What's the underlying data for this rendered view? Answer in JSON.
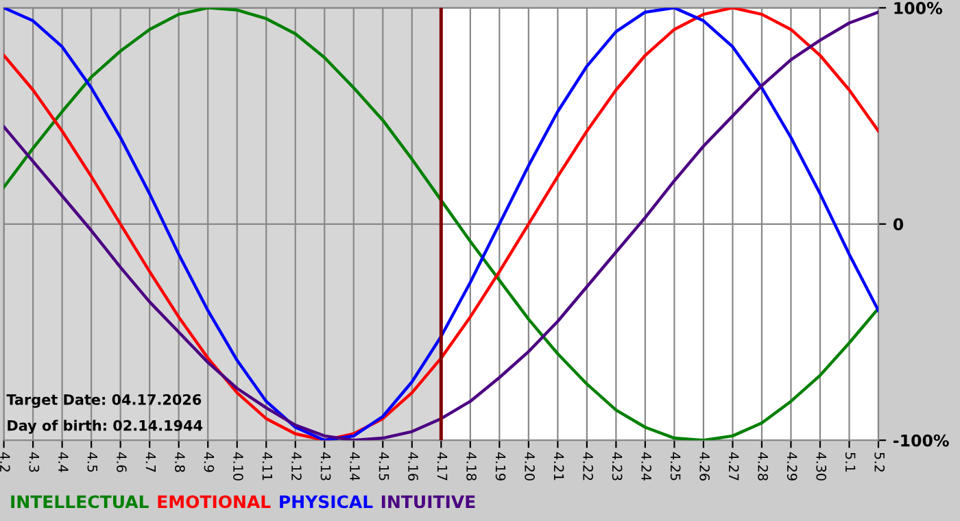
{
  "chart_data": {
    "type": "line",
    "categories": [
      "4.2",
      "4.3",
      "4.4",
      "4.5",
      "4.6",
      "4.7",
      "4.8",
      "4.9",
      "4.10",
      "4.11",
      "4.12",
      "4.13",
      "4.14",
      "4.15",
      "4.16",
      "4.17",
      "4.18",
      "4.19",
      "4.20",
      "4.21",
      "4.22",
      "4.23",
      "4.24",
      "4.25",
      "4.26",
      "4.27",
      "4.28",
      "4.29",
      "4.30",
      "5.1",
      "5.2"
    ],
    "series": [
      {
        "name": "INTELLECTUAL",
        "color": "#008000",
        "values": [
          17,
          35,
          52,
          68,
          80,
          90,
          97,
          100,
          99,
          95,
          88,
          77,
          63,
          48,
          30,
          11,
          -8,
          -26,
          -44,
          -60,
          -74,
          -86,
          -94,
          -99,
          -100,
          -98,
          -92,
          -82,
          -70,
          -55,
          -39
        ]
      },
      {
        "name": "EMOTIONAL",
        "color": "#ff0000",
        "values": [
          78,
          62,
          43,
          22,
          0,
          -22,
          -43,
          -62,
          -78,
          -90,
          -97,
          -100,
          -97,
          -90,
          -78,
          -62,
          -43,
          -22,
          0,
          22,
          43,
          62,
          78,
          90,
          97,
          100,
          97,
          90,
          78,
          62,
          43
        ]
      },
      {
        "name": "PHYSICAL",
        "color": "#0000ff",
        "values": [
          100,
          94,
          82,
          63,
          40,
          14,
          -14,
          -40,
          -63,
          -82,
          -94,
          -100,
          -98,
          -89,
          -73,
          -52,
          -27,
          0,
          27,
          52,
          73,
          89,
          98,
          100,
          94,
          82,
          63,
          40,
          14,
          -14,
          -40
        ]
      },
      {
        "name": "INTUITIVE",
        "color": "#4b0082",
        "values": [
          45,
          29,
          13,
          -3,
          -20,
          -36,
          -50,
          -64,
          -76,
          -85,
          -93,
          -98,
          -100,
          -99,
          -96,
          -90,
          -82,
          -71,
          -59,
          -45,
          -29,
          -13,
          3,
          20,
          36,
          50,
          64,
          76,
          85,
          93,
          98
        ]
      }
    ],
    "ylim": [
      -100,
      100
    ],
    "yticks": [
      {
        "value": -100,
        "label": "-100%"
      },
      0,
      {
        "value": 100,
        "label": "100%"
      }
    ],
    "grid": true,
    "legend": "bottom left",
    "marker": "none",
    "line_style": "solid",
    "ref_lines": [
      {
        "axis": "x",
        "value": "4.17",
        "color": "#800000",
        "line_style": "solid"
      }
    ],
    "bands": [
      {
        "axis": "x",
        "from": "4.2",
        "to": "4.17",
        "color": "#d6d6d6"
      }
    ],
    "annotations": [
      "Target Date: 04.17.2026",
      "Day of birth: 02.14.1944"
    ]
  }
}
